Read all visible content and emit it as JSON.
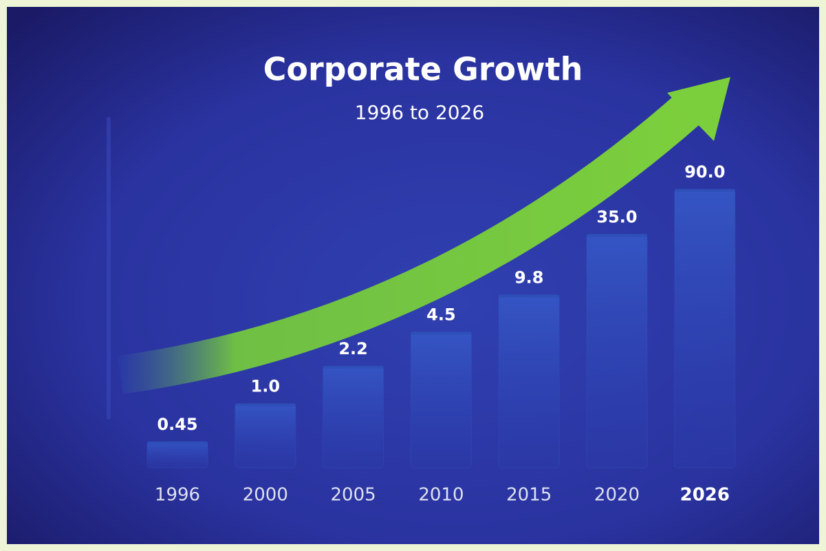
{
  "chart_data": {
    "type": "bar",
    "title": "Corporate Growth",
    "subtitle": "1996 to 2026",
    "categories": [
      "1996",
      "2000",
      "2005",
      "2010",
      "2015",
      "2020",
      "2026"
    ],
    "values": [
      0.45,
      1,
      2.2,
      4.5,
      9.8,
      35,
      90
    ],
    "value_labels": [
      "0.45",
      "1.0",
      "2.2",
      "4.5",
      "9.8",
      "35.0",
      "90.0"
    ],
    "color": "#2f4fb8",
    "log_scale": true
  }
}
